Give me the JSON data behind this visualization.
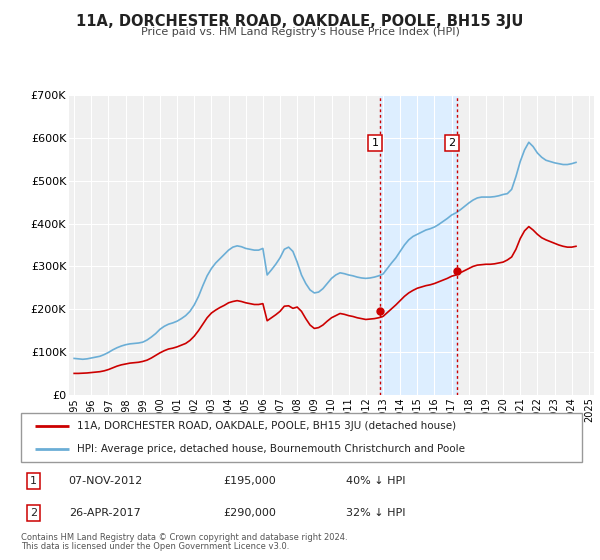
{
  "title": "11A, DORCHESTER ROAD, OAKDALE, POOLE, BH15 3JU",
  "subtitle": "Price paid vs. HM Land Registry's House Price Index (HPI)",
  "ylim": [
    0,
    700000
  ],
  "yticks": [
    0,
    100000,
    200000,
    300000,
    400000,
    500000,
    600000,
    700000
  ],
  "ytick_labels": [
    "£0",
    "£100K",
    "£200K",
    "£300K",
    "£400K",
    "£500K",
    "£600K",
    "£700K"
  ],
  "hpi_color": "#6baed6",
  "sale_color": "#cc0000",
  "marker_color": "#cc0000",
  "shaded_region_color": "#ddeeff",
  "vline_color": "#cc0000",
  "vline2_color": "#cc0000",
  "legend_label_sale": "11A, DORCHESTER ROAD, OAKDALE, POOLE, BH15 3JU (detached house)",
  "legend_label_hpi": "HPI: Average price, detached house, Bournemouth Christchurch and Poole",
  "annotation1_label": "07-NOV-2012",
  "annotation1_price": "£195,000",
  "annotation1_hpi": "40% ↓ HPI",
  "annotation1_year": 2012.85,
  "annotation1_value": 195000,
  "annotation2_label": "26-APR-2017",
  "annotation2_price": "£290,000",
  "annotation2_hpi": "32% ↓ HPI",
  "annotation2_year": 2017.32,
  "annotation2_value": 290000,
  "footer1": "Contains HM Land Registry data © Crown copyright and database right 2024.",
  "footer2": "This data is licensed under the Open Government Licence v3.0.",
  "background_color": "#ffffff",
  "plot_bg_color": "#f0f0f0",
  "hpi_data": {
    "years": [
      1995.0,
      1995.25,
      1995.5,
      1995.75,
      1996.0,
      1996.25,
      1996.5,
      1996.75,
      1997.0,
      1997.25,
      1997.5,
      1997.75,
      1998.0,
      1998.25,
      1998.5,
      1998.75,
      1999.0,
      1999.25,
      1999.5,
      1999.75,
      2000.0,
      2000.25,
      2000.5,
      2000.75,
      2001.0,
      2001.25,
      2001.5,
      2001.75,
      2002.0,
      2002.25,
      2002.5,
      2002.75,
      2003.0,
      2003.25,
      2003.5,
      2003.75,
      2004.0,
      2004.25,
      2004.5,
      2004.75,
      2005.0,
      2005.25,
      2005.5,
      2005.75,
      2006.0,
      2006.25,
      2006.5,
      2006.75,
      2007.0,
      2007.25,
      2007.5,
      2007.75,
      2008.0,
      2008.25,
      2008.5,
      2008.75,
      2009.0,
      2009.25,
      2009.5,
      2009.75,
      2010.0,
      2010.25,
      2010.5,
      2010.75,
      2011.0,
      2011.25,
      2011.5,
      2011.75,
      2012.0,
      2012.25,
      2012.5,
      2012.75,
      2013.0,
      2013.25,
      2013.5,
      2013.75,
      2014.0,
      2014.25,
      2014.5,
      2014.75,
      2015.0,
      2015.25,
      2015.5,
      2015.75,
      2016.0,
      2016.25,
      2016.5,
      2016.75,
      2017.0,
      2017.25,
      2017.5,
      2017.75,
      2018.0,
      2018.25,
      2018.5,
      2018.75,
      2019.0,
      2019.25,
      2019.5,
      2019.75,
      2020.0,
      2020.25,
      2020.5,
      2020.75,
      2021.0,
      2021.25,
      2021.5,
      2021.75,
      2022.0,
      2022.25,
      2022.5,
      2022.75,
      2023.0,
      2023.25,
      2023.5,
      2023.75,
      2024.0,
      2024.25
    ],
    "values": [
      85000,
      84000,
      83000,
      84000,
      86000,
      88000,
      90000,
      94000,
      99000,
      105000,
      110000,
      114000,
      117000,
      119000,
      120000,
      121000,
      123000,
      128000,
      135000,
      143000,
      153000,
      160000,
      165000,
      168000,
      172000,
      178000,
      185000,
      195000,
      210000,
      230000,
      255000,
      278000,
      295000,
      308000,
      318000,
      328000,
      338000,
      345000,
      348000,
      346000,
      342000,
      340000,
      338000,
      338000,
      342000,
      280000,
      292000,
      305000,
      320000,
      340000,
      345000,
      335000,
      310000,
      280000,
      260000,
      245000,
      238000,
      240000,
      248000,
      260000,
      272000,
      280000,
      285000,
      283000,
      280000,
      278000,
      275000,
      273000,
      272000,
      273000,
      275000,
      278000,
      282000,
      295000,
      308000,
      320000,
      335000,
      350000,
      362000,
      370000,
      375000,
      380000,
      385000,
      388000,
      392000,
      398000,
      405000,
      412000,
      420000,
      425000,
      432000,
      440000,
      448000,
      455000,
      460000,
      462000,
      462000,
      462000,
      463000,
      465000,
      468000,
      470000,
      480000,
      510000,
      545000,
      572000,
      590000,
      580000,
      565000,
      555000,
      548000,
      545000,
      542000,
      540000,
      538000,
      538000,
      540000,
      543000
    ]
  },
  "sale_data": {
    "years": [
      1995.0,
      1995.25,
      1995.5,
      1995.75,
      1996.0,
      1996.25,
      1996.5,
      1996.75,
      1997.0,
      1997.25,
      1997.5,
      1997.75,
      1998.0,
      1998.25,
      1998.5,
      1998.75,
      1999.0,
      1999.25,
      1999.5,
      1999.75,
      2000.0,
      2000.25,
      2000.5,
      2000.75,
      2001.0,
      2001.25,
      2001.5,
      2001.75,
      2002.0,
      2002.25,
      2002.5,
      2002.75,
      2003.0,
      2003.25,
      2003.5,
      2003.75,
      2004.0,
      2004.25,
      2004.5,
      2004.75,
      2005.0,
      2005.25,
      2005.5,
      2005.75,
      2006.0,
      2006.25,
      2006.5,
      2006.75,
      2007.0,
      2007.25,
      2007.5,
      2007.75,
      2008.0,
      2008.25,
      2008.5,
      2008.75,
      2009.0,
      2009.25,
      2009.5,
      2009.75,
      2010.0,
      2010.25,
      2010.5,
      2010.75,
      2011.0,
      2011.25,
      2011.5,
      2011.75,
      2012.0,
      2012.25,
      2012.5,
      2012.75,
      2013.0,
      2013.25,
      2013.5,
      2013.75,
      2014.0,
      2014.25,
      2014.5,
      2014.75,
      2015.0,
      2015.25,
      2015.5,
      2015.75,
      2016.0,
      2016.25,
      2016.5,
      2016.75,
      2017.0,
      2017.25,
      2017.5,
      2017.75,
      2018.0,
      2018.25,
      2018.5,
      2018.75,
      2019.0,
      2019.25,
      2019.5,
      2019.75,
      2020.0,
      2020.25,
      2020.5,
      2020.75,
      2021.0,
      2021.25,
      2021.5,
      2021.75,
      2022.0,
      2022.25,
      2022.5,
      2022.75,
      2023.0,
      2023.25,
      2023.5,
      2023.75,
      2024.0,
      2024.25
    ],
    "values": [
      50000,
      50000,
      50500,
      51000,
      52000,
      53000,
      54000,
      56000,
      59000,
      63000,
      67000,
      70000,
      72000,
      74000,
      75000,
      76000,
      78000,
      81000,
      86000,
      92000,
      98000,
      103000,
      107000,
      109000,
      112000,
      116000,
      120000,
      127000,
      137000,
      150000,
      165000,
      180000,
      191000,
      198000,
      204000,
      209000,
      215000,
      218000,
      220000,
      218000,
      215000,
      213000,
      211000,
      211000,
      213000,
      173000,
      180000,
      187000,
      195000,
      207000,
      208000,
      202000,
      205000,
      195000,
      178000,
      163000,
      155000,
      157000,
      163000,
      172000,
      180000,
      185000,
      190000,
      188000,
      185000,
      183000,
      180000,
      178000,
      176000,
      177000,
      178000,
      180000,
      183000,
      192000,
      201000,
      210000,
      220000,
      230000,
      238000,
      244000,
      249000,
      252000,
      255000,
      257000,
      260000,
      264000,
      268000,
      272000,
      277000,
      280000,
      285000,
      290000,
      295000,
      300000,
      303000,
      304000,
      305000,
      305000,
      306000,
      308000,
      310000,
      315000,
      322000,
      340000,
      365000,
      383000,
      393000,
      385000,
      375000,
      367000,
      362000,
      358000,
      354000,
      350000,
      347000,
      345000,
      345000,
      347000
    ]
  }
}
